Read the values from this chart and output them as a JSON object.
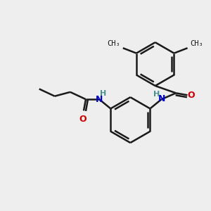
{
  "background_color": "#eeeeee",
  "bond_color": "#1a1a1a",
  "nitrogen_color": "#0000cc",
  "oxygen_color": "#cc0000",
  "nh_color": "#4a9090",
  "bond_width": 1.8,
  "figsize": [
    3.0,
    3.0
  ],
  "dpi": 100,
  "xlim": [
    0,
    10
  ],
  "ylim": [
    0,
    10
  ]
}
